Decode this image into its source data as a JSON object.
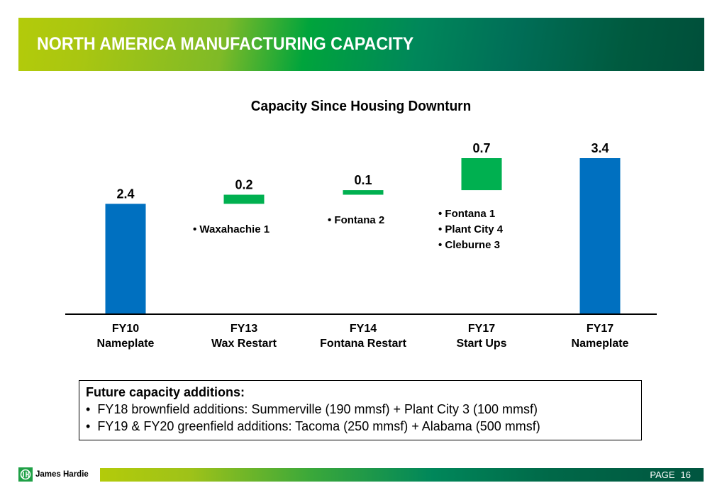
{
  "header": {
    "title": "NORTH AMERICA MANUFACTURING CAPACITY"
  },
  "chart_data": {
    "type": "bar",
    "subtype": "waterfall",
    "title": "Capacity Since Housing Downturn",
    "xlabel": "",
    "ylabel": "",
    "ylim": [
      0,
      3.4
    ],
    "grid": false,
    "categories": [
      [
        "FY10",
        "Nameplate"
      ],
      [
        "FY13",
        "Wax Restart"
      ],
      [
        "FY14",
        "Fontana Restart"
      ],
      [
        "FY17",
        "Start Ups"
      ],
      [
        "FY17",
        "Nameplate"
      ]
    ],
    "values": [
      2.4,
      0.2,
      0.1,
      0.7,
      3.4
    ],
    "value_labels": [
      "2.4",
      "0.2",
      "0.1",
      "0.7",
      "3.4"
    ],
    "bar_kinds": [
      "total",
      "increment",
      "increment",
      "increment",
      "total"
    ],
    "colors": {
      "total": "#0070c0",
      "increment": "#00b050"
    },
    "annotations": [
      {
        "category_index": 1,
        "lines": [
          "Waxahachie 1"
        ]
      },
      {
        "category_index": 2,
        "lines": [
          "Fontana 2"
        ]
      },
      {
        "category_index": 3,
        "lines": [
          "Fontana 1",
          "Plant City 4",
          "Cleburne 3"
        ]
      }
    ]
  },
  "future_box": {
    "heading": "Future capacity additions:",
    "items": [
      "FY18 brownfield additions:  Summerville (190 mmsf) + Plant City 3 (100 mmsf)",
      "FY19 & FY20 greenfield additions:  Tacoma (250 mmsf) + Alabama (500 mmsf)"
    ]
  },
  "footer": {
    "logo_text": "James Hardie",
    "page_label": "PAGE",
    "page_number": "16"
  }
}
